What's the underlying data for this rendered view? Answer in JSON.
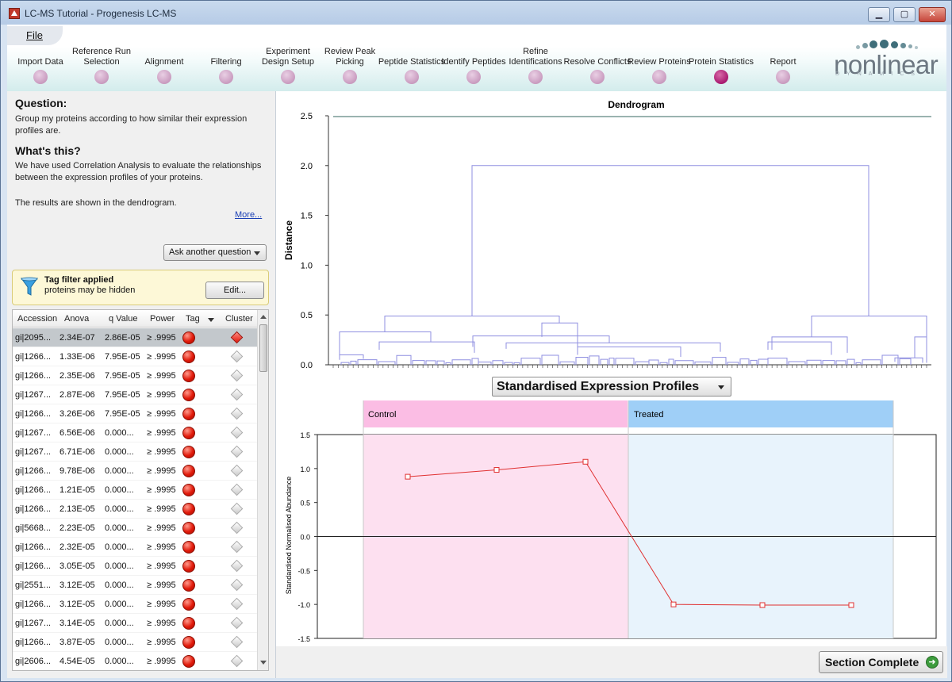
{
  "window": {
    "title": "LC-MS Tutorial - Progenesis LC-MS",
    "minimize": "▁",
    "maximize": "▢",
    "close": "✕"
  },
  "menu": {
    "file": "File"
  },
  "workflow": {
    "steps": [
      {
        "label": "Import Data",
        "active": false
      },
      {
        "label": "Reference Run Selection",
        "active": false
      },
      {
        "label": "Alignment",
        "active": false
      },
      {
        "label": "Filtering",
        "active": false
      },
      {
        "label": "Experiment Design Setup",
        "active": false
      },
      {
        "label": "Review Peak Picking",
        "active": false
      },
      {
        "label": "Peptide Statistics",
        "active": false
      },
      {
        "label": "Identify Peptides",
        "active": false
      },
      {
        "label": "Refine Identifications",
        "active": false
      },
      {
        "label": "Resolve Conflicts",
        "active": false
      },
      {
        "label": "Review Proteins",
        "active": false
      },
      {
        "label": "Protein Statistics",
        "active": true
      },
      {
        "label": "Report",
        "active": false
      }
    ]
  },
  "logo": {
    "text": "nonlinear",
    "sub": "DYNAMICS"
  },
  "question": {
    "heading": "Question:",
    "text": "Group my proteins according to how similar their expression profiles are.",
    "whats_heading": "What's this?",
    "whats_text": "We have used Correlation Analysis to evaluate the relationships between the expression profiles of your proteins.",
    "results_text": "The results are shown in the dendrogram.",
    "more": "More...",
    "ask_button": "Ask another question"
  },
  "tag_filter": {
    "title": "Tag filter applied",
    "subtitle": "proteins may be hidden",
    "edit": "Edit..."
  },
  "table": {
    "columns": [
      "Accession",
      "Anova",
      "q Value",
      "Power",
      "Tag",
      "Cluster"
    ],
    "rows": [
      [
        "gi|2095...",
        "2.34E-07",
        "2.86E-05",
        "≥ .9995"
      ],
      [
        "gi|1266...",
        "1.33E-06",
        "7.95E-05",
        "≥ .9995"
      ],
      [
        "gi|1266...",
        "2.35E-06",
        "7.95E-05",
        "≥ .9995"
      ],
      [
        "gi|1267...",
        "2.87E-06",
        "7.95E-05",
        "≥ .9995"
      ],
      [
        "gi|1266...",
        "3.26E-06",
        "7.95E-05",
        "≥ .9995"
      ],
      [
        "gi|1267...",
        "6.56E-06",
        "0.000...",
        "≥ .9995"
      ],
      [
        "gi|1267...",
        "6.71E-06",
        "0.000...",
        "≥ .9995"
      ],
      [
        "gi|1266...",
        "9.78E-06",
        "0.000...",
        "≥ .9995"
      ],
      [
        "gi|1266...",
        "1.21E-05",
        "0.000...",
        "≥ .9995"
      ],
      [
        "gi|1266...",
        "2.13E-05",
        "0.000...",
        "≥ .9995"
      ],
      [
        "gi|5668...",
        "2.23E-05",
        "0.000...",
        "≥ .9995"
      ],
      [
        "gi|1266...",
        "2.32E-05",
        "0.000...",
        "≥ .9995"
      ],
      [
        "gi|1266...",
        "3.05E-05",
        "0.000...",
        "≥ .9995"
      ],
      [
        "gi|2551...",
        "3.12E-05",
        "0.000...",
        "≥ .9995"
      ],
      [
        "gi|1266...",
        "3.12E-05",
        "0.000...",
        "≥ .9995"
      ],
      [
        "gi|1267...",
        "3.14E-05",
        "0.000...",
        "≥ .9995"
      ],
      [
        "gi|1266...",
        "3.87E-05",
        "0.000...",
        "≥ .9995"
      ],
      [
        "gi|2606...",
        "4.54E-05",
        "0.000...",
        "≥ .9995"
      ]
    ]
  },
  "colors": {
    "tag_red": "#e11a0a",
    "control_bg": "#fde0f0",
    "treated_bg": "#e8f3fc",
    "dendro_line": "#8f8fe0",
    "profile_line": "#e03030"
  },
  "chart_data": [
    {
      "type": "dendrogram",
      "title": "Dendrogram",
      "ylabel": "Distance",
      "ylim": [
        0,
        2.5
      ],
      "yticks": [
        "0.0",
        "0.5",
        "1.0",
        "1.5",
        "2.0",
        "2.5"
      ],
      "root_height": 2.0,
      "top_clusters": [
        {
          "height": 0.49,
          "children_heights": [
            0.33,
            0.42
          ]
        },
        {
          "height": 0.49,
          "children_heights": [
            0.28,
            0.28
          ]
        }
      ]
    },
    {
      "type": "line",
      "title": "Standardised Expression Profiles",
      "ylabel": "Standardised Normalised Abundance",
      "ylim": [
        -1.5,
        1.5
      ],
      "yticks": [
        "1.5",
        "1.0",
        "0.5",
        "0.0",
        "-0.5",
        "-1.0",
        "-1.5"
      ],
      "groups": [
        "Control",
        "Treated"
      ],
      "x": [
        1,
        2,
        3,
        4,
        5,
        6
      ],
      "series": [
        {
          "values": [
            0.88,
            0.98,
            1.1,
            -1.0,
            -1.01,
            -1.01
          ]
        }
      ]
    }
  ],
  "section_complete": "Section Complete"
}
